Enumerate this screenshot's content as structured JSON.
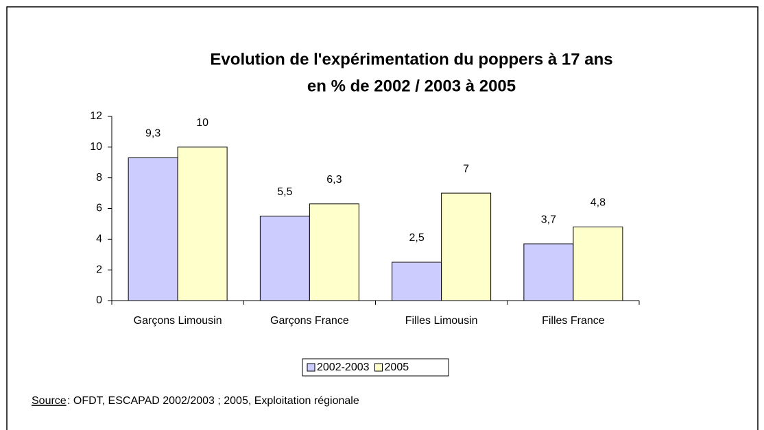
{
  "chart_data": {
    "type": "bar",
    "title": [
      "Evolution de l'expérimentation du poppers à 17 ans",
      "en % de 2002 / 2003 à 2005"
    ],
    "categories": [
      "Garçons Limousin",
      "Garçons France",
      "Filles Limousin",
      "Filles France"
    ],
    "series": [
      {
        "name": "2002-2003",
        "color": "#ccccff",
        "values": [
          9.3,
          5.5,
          2.5,
          3.7
        ],
        "value_labels": [
          "9,3",
          "5,5",
          "2,5",
          "3,7"
        ]
      },
      {
        "name": "2005",
        "color": "#ffffcc",
        "values": [
          10,
          6.3,
          7,
          4.8
        ],
        "value_labels": [
          "10",
          "6,3",
          "7",
          "4,8"
        ]
      }
    ],
    "ylim": [
      0,
      12
    ],
    "yticks": [
      0,
      2,
      4,
      6,
      8,
      10,
      12
    ],
    "grid": false,
    "legend": "bottom",
    "source_label": "Source ",
    "source": ": OFDT, ESCAPAD 2002/2003 ; 2005, Exploitation régionale"
  }
}
